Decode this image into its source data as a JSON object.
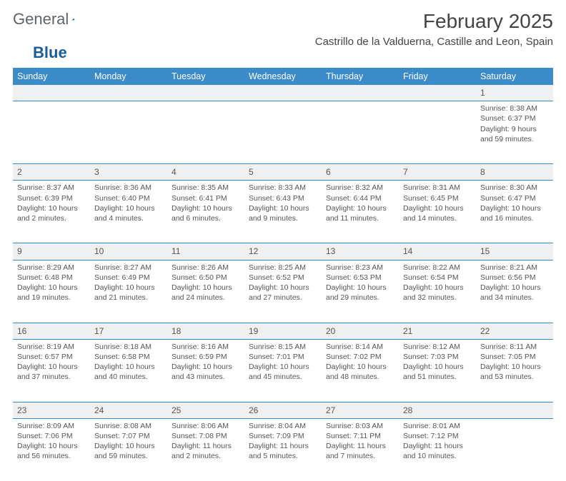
{
  "brand": {
    "part1": "General",
    "part2": "Blue"
  },
  "title": "February 2025",
  "location": "Castrillo de la Valduerna, Castille and Leon, Spain",
  "colors": {
    "header_blue": "#3b8bc9",
    "accent_blue": "#1b5d99",
    "row_stripe": "#eef0f2",
    "text": "#333333",
    "rule": "#3b8bc9"
  },
  "calendar": {
    "type": "month-calendar",
    "columns": [
      "Sunday",
      "Monday",
      "Tuesday",
      "Wednesday",
      "Thursday",
      "Friday",
      "Saturday"
    ],
    "start_day_index": 6,
    "days": [
      {
        "n": 1,
        "sunrise": "8:38 AM",
        "sunset": "6:37 PM",
        "daylight": "9 hours and 59 minutes."
      },
      {
        "n": 2,
        "sunrise": "8:37 AM",
        "sunset": "6:39 PM",
        "daylight": "10 hours and 2 minutes."
      },
      {
        "n": 3,
        "sunrise": "8:36 AM",
        "sunset": "6:40 PM",
        "daylight": "10 hours and 4 minutes."
      },
      {
        "n": 4,
        "sunrise": "8:35 AM",
        "sunset": "6:41 PM",
        "daylight": "10 hours and 6 minutes."
      },
      {
        "n": 5,
        "sunrise": "8:33 AM",
        "sunset": "6:43 PM",
        "daylight": "10 hours and 9 minutes."
      },
      {
        "n": 6,
        "sunrise": "8:32 AM",
        "sunset": "6:44 PM",
        "daylight": "10 hours and 11 minutes."
      },
      {
        "n": 7,
        "sunrise": "8:31 AM",
        "sunset": "6:45 PM",
        "daylight": "10 hours and 14 minutes."
      },
      {
        "n": 8,
        "sunrise": "8:30 AM",
        "sunset": "6:47 PM",
        "daylight": "10 hours and 16 minutes."
      },
      {
        "n": 9,
        "sunrise": "8:29 AM",
        "sunset": "6:48 PM",
        "daylight": "10 hours and 19 minutes."
      },
      {
        "n": 10,
        "sunrise": "8:27 AM",
        "sunset": "6:49 PM",
        "daylight": "10 hours and 21 minutes."
      },
      {
        "n": 11,
        "sunrise": "8:26 AM",
        "sunset": "6:50 PM",
        "daylight": "10 hours and 24 minutes."
      },
      {
        "n": 12,
        "sunrise": "8:25 AM",
        "sunset": "6:52 PM",
        "daylight": "10 hours and 27 minutes."
      },
      {
        "n": 13,
        "sunrise": "8:23 AM",
        "sunset": "6:53 PM",
        "daylight": "10 hours and 29 minutes."
      },
      {
        "n": 14,
        "sunrise": "8:22 AM",
        "sunset": "6:54 PM",
        "daylight": "10 hours and 32 minutes."
      },
      {
        "n": 15,
        "sunrise": "8:21 AM",
        "sunset": "6:56 PM",
        "daylight": "10 hours and 34 minutes."
      },
      {
        "n": 16,
        "sunrise": "8:19 AM",
        "sunset": "6:57 PM",
        "daylight": "10 hours and 37 minutes."
      },
      {
        "n": 17,
        "sunrise": "8:18 AM",
        "sunset": "6:58 PM",
        "daylight": "10 hours and 40 minutes."
      },
      {
        "n": 18,
        "sunrise": "8:16 AM",
        "sunset": "6:59 PM",
        "daylight": "10 hours and 43 minutes."
      },
      {
        "n": 19,
        "sunrise": "8:15 AM",
        "sunset": "7:01 PM",
        "daylight": "10 hours and 45 minutes."
      },
      {
        "n": 20,
        "sunrise": "8:14 AM",
        "sunset": "7:02 PM",
        "daylight": "10 hours and 48 minutes."
      },
      {
        "n": 21,
        "sunrise": "8:12 AM",
        "sunset": "7:03 PM",
        "daylight": "10 hours and 51 minutes."
      },
      {
        "n": 22,
        "sunrise": "8:11 AM",
        "sunset": "7:05 PM",
        "daylight": "10 hours and 53 minutes."
      },
      {
        "n": 23,
        "sunrise": "8:09 AM",
        "sunset": "7:06 PM",
        "daylight": "10 hours and 56 minutes."
      },
      {
        "n": 24,
        "sunrise": "8:08 AM",
        "sunset": "7:07 PM",
        "daylight": "10 hours and 59 minutes."
      },
      {
        "n": 25,
        "sunrise": "8:06 AM",
        "sunset": "7:08 PM",
        "daylight": "11 hours and 2 minutes."
      },
      {
        "n": 26,
        "sunrise": "8:04 AM",
        "sunset": "7:09 PM",
        "daylight": "11 hours and 5 minutes."
      },
      {
        "n": 27,
        "sunrise": "8:03 AM",
        "sunset": "7:11 PM",
        "daylight": "11 hours and 7 minutes."
      },
      {
        "n": 28,
        "sunrise": "8:01 AM",
        "sunset": "7:12 PM",
        "daylight": "11 hours and 10 minutes."
      }
    ],
    "labels": {
      "sunrise": "Sunrise:",
      "sunset": "Sunset:",
      "daylight": "Daylight:"
    }
  }
}
